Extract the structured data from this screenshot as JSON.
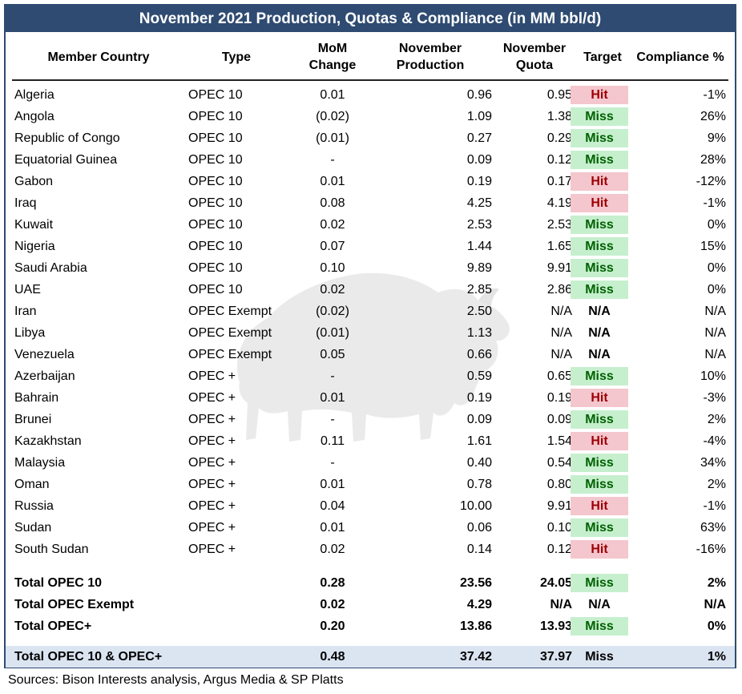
{
  "title": "November 2021 Production, Quotas & Compliance (in MM bbl/d)",
  "headers": {
    "country": "Member Country",
    "type": "Type",
    "mom": [
      "MoM",
      "Change"
    ],
    "production": [
      "November",
      "Production"
    ],
    "quota": [
      "November",
      "Quota"
    ],
    "target": "Target",
    "compliance": "Compliance %"
  },
  "rows": [
    {
      "country": "Algeria",
      "type": "OPEC 10",
      "mom": "0.01",
      "production": "0.96",
      "quota": "0.95",
      "target": "Hit",
      "compliance": "-1%"
    },
    {
      "country": "Angola",
      "type": "OPEC 10",
      "mom": "(0.02)",
      "production": "1.09",
      "quota": "1.38",
      "target": "Miss",
      "compliance": "26%"
    },
    {
      "country": "Republic of Congo",
      "type": "OPEC 10",
      "mom": "(0.01)",
      "production": "0.27",
      "quota": "0.29",
      "target": "Miss",
      "compliance": "9%"
    },
    {
      "country": "Equatorial Guinea",
      "type": "OPEC 10",
      "mom": "-",
      "production": "0.09",
      "quota": "0.12",
      "target": "Miss",
      "compliance": "28%"
    },
    {
      "country": "Gabon",
      "type": "OPEC 10",
      "mom": "0.01",
      "production": "0.19",
      "quota": "0.17",
      "target": "Hit",
      "compliance": "-12%"
    },
    {
      "country": "Iraq",
      "type": "OPEC 10",
      "mom": "0.08",
      "production": "4.25",
      "quota": "4.19",
      "target": "Hit",
      "compliance": "-1%"
    },
    {
      "country": "Kuwait",
      "type": "OPEC 10",
      "mom": "0.02",
      "production": "2.53",
      "quota": "2.53",
      "target": "Miss",
      "compliance": "0%"
    },
    {
      "country": "Nigeria",
      "type": "OPEC 10",
      "mom": "0.07",
      "production": "1.44",
      "quota": "1.65",
      "target": "Miss",
      "compliance": "15%"
    },
    {
      "country": "Saudi Arabia",
      "type": "OPEC 10",
      "mom": "0.10",
      "production": "9.89",
      "quota": "9.91",
      "target": "Miss",
      "compliance": "0%"
    },
    {
      "country": "UAE",
      "type": "OPEC 10",
      "mom": "0.02",
      "production": "2.85",
      "quota": "2.86",
      "target": "Miss",
      "compliance": "0%"
    },
    {
      "country": "Iran",
      "type": "OPEC Exempt",
      "mom": "(0.02)",
      "production": "2.50",
      "quota": "N/A",
      "target": "N/A",
      "compliance": "N/A"
    },
    {
      "country": "Libya",
      "type": "OPEC Exempt",
      "mom": "(0.01)",
      "production": "1.13",
      "quota": "N/A",
      "target": "N/A",
      "compliance": "N/A"
    },
    {
      "country": "Venezuela",
      "type": "OPEC Exempt",
      "mom": "0.05",
      "production": "0.66",
      "quota": "N/A",
      "target": "N/A",
      "compliance": "N/A"
    },
    {
      "country": "Azerbaijan",
      "type": "OPEC +",
      "mom": "-",
      "production": "0.59",
      "quota": "0.65",
      "target": "Miss",
      "compliance": "10%"
    },
    {
      "country": "Bahrain",
      "type": "OPEC +",
      "mom": "0.01",
      "production": "0.19",
      "quota": "0.19",
      "target": "Hit",
      "compliance": "-3%"
    },
    {
      "country": "Brunei",
      "type": "OPEC +",
      "mom": "-",
      "production": "0.09",
      "quota": "0.09",
      "target": "Miss",
      "compliance": "2%"
    },
    {
      "country": "Kazakhstan",
      "type": "OPEC +",
      "mom": "0.11",
      "production": "1.61",
      "quota": "1.54",
      "target": "Hit",
      "compliance": "-4%"
    },
    {
      "country": "Malaysia",
      "type": "OPEC +",
      "mom": "-",
      "production": "0.40",
      "quota": "0.54",
      "target": "Miss",
      "compliance": "34%"
    },
    {
      "country": "Oman",
      "type": "OPEC +",
      "mom": "0.01",
      "production": "0.78",
      "quota": "0.80",
      "target": "Miss",
      "compliance": "2%"
    },
    {
      "country": "Russia",
      "type": "OPEC +",
      "mom": "0.04",
      "production": "10.00",
      "quota": "9.91",
      "target": "Hit",
      "compliance": "-1%"
    },
    {
      "country": "Sudan",
      "type": "OPEC +",
      "mom": "0.01",
      "production": "0.06",
      "quota": "0.10",
      "target": "Miss",
      "compliance": "63%"
    },
    {
      "country": "South Sudan",
      "type": "OPEC +",
      "mom": "0.02",
      "production": "0.14",
      "quota": "0.12",
      "target": "Hit",
      "compliance": "-16%"
    }
  ],
  "totals": [
    {
      "country": "Total OPEC 10",
      "mom": "0.28",
      "production": "23.56",
      "quota": "24.05",
      "target": "Miss",
      "compliance": "2%"
    },
    {
      "country": "Total OPEC Exempt",
      "mom": "0.02",
      "production": "4.29",
      "quota": "N/A",
      "target": "N/A",
      "compliance": "N/A"
    },
    {
      "country": "Total OPEC+",
      "mom": "0.20",
      "production": "13.86",
      "quota": "13.93",
      "target": "Miss",
      "compliance": "0%"
    }
  ],
  "grand_total": {
    "country": "Total OPEC 10 & OPEC+",
    "mom": "0.48",
    "production": "37.42",
    "quota": "37.97",
    "target": "Miss",
    "compliance": "1%"
  },
  "source": "Sources: Bison Interests analysis, Argus Media & SP Platts",
  "colors": {
    "title_bg": "#2f4b72",
    "hit_bg": "#f4c6cd",
    "hit_text": "#9c0006",
    "miss_bg": "#c6efce",
    "miss_text": "#006100",
    "grand_total_bg": "#dbe5f1"
  },
  "watermark_icon": "bison-watermark-icon"
}
